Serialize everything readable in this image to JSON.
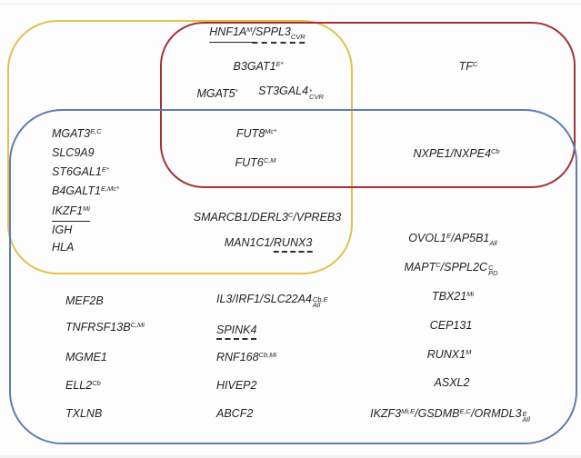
{
  "diagram": {
    "type": "venn-rounded-rectangles",
    "sets": {
      "yellow": {
        "color": "#e3c04d"
      },
      "red": {
        "color": "#a23439"
      },
      "blue": {
        "color": "#5d7cb3"
      }
    },
    "text_color": "#232323",
    "regions": {
      "yellow_red": {
        "sets": [
          "yellow",
          "red"
        ],
        "items": [
          {
            "g": [
              {
                "u": "solid",
                "p": [
                  {
                    "t": "x",
                    "v": "HNF1A"
                  },
                  {
                    "t": "s",
                    "v": "M"
                  }
                ]
              },
              {
                "u": "dashed",
                "p": [
                  {
                    "t": "x",
                    "v": " /SPPL3"
                  },
                  {
                    "t": "b",
                    "v": "CVR"
                  }
                ]
              }
            ]
          },
          {
            "g": [
              {
                "p": [
                  {
                    "t": "x",
                    "v": "B3GAT1"
                  },
                  {
                    "t": "s",
                    "v": "E*"
                  }
                ]
              }
            ]
          },
          {
            "g": [
              {
                "p": [
                  {
                    "t": "x",
                    "v": "MGAT5"
                  },
                  {
                    "t": "s",
                    "v": "*"
                  }
                ]
              }
            ]
          },
          {
            "g": [
              {
                "p": [
                  {
                    "t": "x",
                    "v": "ST3GAL4"
                  },
                  {
                    "t": "ss",
                    "v": "*",
                    "v2": "CVR"
                  }
                ]
              }
            ]
          }
        ]
      },
      "red_only": {
        "sets": [
          "red"
        ],
        "items": [
          {
            "g": [
              {
                "p": [
                  {
                    "t": "x",
                    "v": "TF"
                  },
                  {
                    "t": "s",
                    "v": "C"
                  }
                ]
              }
            ]
          }
        ]
      },
      "yellow_blue_left": {
        "sets": [
          "yellow",
          "blue"
        ],
        "items": [
          {
            "g": [
              {
                "p": [
                  {
                    "t": "x",
                    "v": "MGAT3"
                  },
                  {
                    "t": "s",
                    "v": "E,C"
                  }
                ]
              }
            ]
          },
          "SLC9A9",
          {
            "g": [
              {
                "p": [
                  {
                    "t": "x",
                    "v": "ST6GAL1"
                  },
                  {
                    "t": "s",
                    "v": "E*"
                  }
                ]
              }
            ]
          },
          {
            "g": [
              {
                "p": [
                  {
                    "t": "x",
                    "v": "B4GALT1"
                  },
                  {
                    "t": "s",
                    "v": "E,Mc*"
                  }
                ]
              }
            ]
          },
          {
            "g": [
              {
                "u": "solid",
                "p": [
                  {
                    "t": "x",
                    "v": "IKZF1"
                  },
                  {
                    "t": "s",
                    "v": "Mi"
                  }
                ]
              }
            ]
          },
          "IGH",
          "HLA"
        ]
      },
      "yellow_red_blue": {
        "sets": [
          "yellow",
          "red",
          "blue"
        ],
        "items": [
          {
            "g": [
              {
                "p": [
                  {
                    "t": "x",
                    "v": "FUT8"
                  },
                  {
                    "t": "s",
                    "v": "Mc*"
                  }
                ]
              }
            ]
          },
          {
            "g": [
              {
                "p": [
                  {
                    "t": "x",
                    "v": "FUT6"
                  },
                  {
                    "t": "s",
                    "v": "C,M"
                  }
                ]
              }
            ]
          }
        ]
      },
      "red_blue": {
        "sets": [
          "red",
          "blue"
        ],
        "items": [
          {
            "g": [
              {
                "p": [
                  {
                    "t": "x",
                    "v": "NXPE1/NXPE4"
                  },
                  {
                    "t": "s",
                    "v": "Cb"
                  }
                ]
              }
            ]
          }
        ]
      },
      "yellow_blue_center": {
        "sets": [
          "yellow",
          "blue"
        ],
        "items": [
          {
            "g": [
              {
                "p": [
                  {
                    "t": "x",
                    "v": "SMARCB1/DERL3"
                  },
                  {
                    "t": "s",
                    "v": "C"
                  },
                  {
                    "t": "x",
                    "v": "/VPREB3"
                  }
                ]
              }
            ]
          },
          {
            "g": [
              {
                "p": [
                  {
                    "t": "x",
                    "v": "MAN1C1/"
                  }
                ]
              },
              {
                "u": "dashed",
                "p": [
                  {
                    "t": "x",
                    "v": "RUNX3"
                  }
                ]
              }
            ]
          }
        ]
      },
      "blue_right_upper": {
        "sets": [
          "blue"
        ],
        "items": [
          {
            "g": [
              {
                "p": [
                  {
                    "t": "x",
                    "v": "OVOL1"
                  },
                  {
                    "t": "s",
                    "v": "E"
                  },
                  {
                    "t": "x",
                    "v": "/AP5B1"
                  },
                  {
                    "t": "b",
                    "v": "All"
                  }
                ]
              }
            ]
          },
          {
            "g": [
              {
                "p": [
                  {
                    "t": "x",
                    "v": "MAPT"
                  },
                  {
                    "t": "s",
                    "v": "C"
                  },
                  {
                    "t": "x",
                    "v": "/SPPL2C"
                  },
                  {
                    "t": "ss",
                    "v": "C",
                    "v2": "PD"
                  }
                ]
              }
            ]
          }
        ]
      },
      "blue_col1": {
        "sets": [
          "blue"
        ],
        "items": [
          "MEF2B",
          {
            "g": [
              {
                "p": [
                  {
                    "t": "x",
                    "v": "TNFRSF13B"
                  },
                  {
                    "t": "s",
                    "v": "C,Mi"
                  }
                ]
              }
            ]
          },
          "MGME1",
          {
            "g": [
              {
                "p": [
                  {
                    "t": "x",
                    "v": "ELL2"
                  },
                  {
                    "t": "s",
                    "v": "Cb"
                  }
                ]
              }
            ]
          },
          "TXLNB"
        ]
      },
      "blue_col2": {
        "sets": [
          "blue"
        ],
        "items": [
          {
            "g": [
              {
                "p": [
                  {
                    "t": "x",
                    "v": "IL3/IRF1/SLC22A4"
                  },
                  {
                    "t": "ss",
                    "v": "Cb,E",
                    "v2": "All"
                  }
                ]
              }
            ]
          },
          {
            "g": [
              {
                "u": "dashed",
                "p": [
                  {
                    "t": "x",
                    "v": "SPINK4"
                  }
                ]
              }
            ]
          },
          {
            "g": [
              {
                "p": [
                  {
                    "t": "x",
                    "v": "RNF168"
                  },
                  {
                    "t": "s",
                    "v": "Cb,Mi"
                  }
                ]
              }
            ]
          },
          "HIVEP2",
          "ABCF2"
        ]
      },
      "blue_col3": {
        "sets": [
          "blue"
        ],
        "items": [
          {
            "g": [
              {
                "p": [
                  {
                    "t": "x",
                    "v": "TBX21"
                  },
                  {
                    "t": "s",
                    "v": "Mi"
                  }
                ]
              }
            ]
          },
          "CEP131",
          {
            "g": [
              {
                "p": [
                  {
                    "t": "x",
                    "v": "RUNX1"
                  },
                  {
                    "t": "s",
                    "v": "M"
                  }
                ]
              }
            ]
          },
          "ASXL2",
          {
            "g": [
              {
                "p": [
                  {
                    "t": "x",
                    "v": "IKZF3"
                  },
                  {
                    "t": "s",
                    "v": "Mi,E"
                  },
                  {
                    "t": "x",
                    "v": "/GSDMB"
                  },
                  {
                    "t": "s",
                    "v": "E,C"
                  },
                  {
                    "t": "x",
                    "v": "/ORMDL3"
                  },
                  {
                    "t": "ss",
                    "v": "E",
                    "v2": "All"
                  }
                ]
              }
            ]
          }
        ]
      }
    }
  }
}
